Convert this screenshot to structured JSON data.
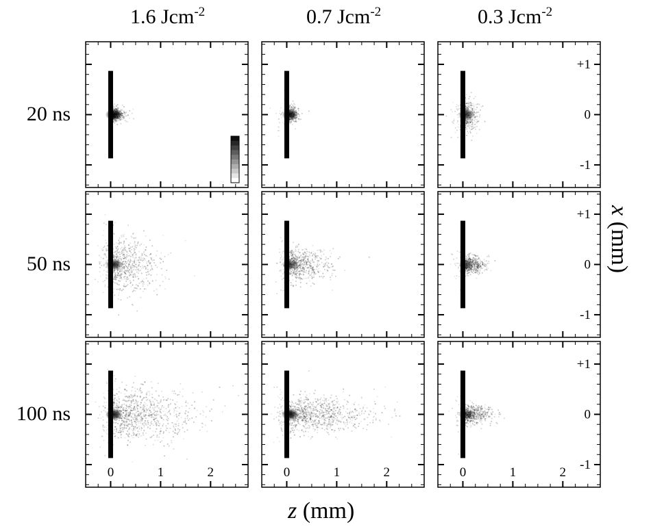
{
  "columns": [
    {
      "value": "1.6 Jcm",
      "exp": "-2"
    },
    {
      "value": "0.7 Jcm",
      "exp": "-2"
    },
    {
      "value": "0.3 Jcm",
      "exp": "-2"
    }
  ],
  "rows": [
    "20 ns",
    "50 ns",
    "100 ns"
  ],
  "x_axis": {
    "symbol": "z",
    "unit": " (mm)",
    "tick_labels": [
      "0",
      "1",
      "2"
    ]
  },
  "y_axis": {
    "symbol": "x",
    "unit": " (mm)",
    "tick_labels": [
      "+1",
      "0",
      "-1"
    ]
  },
  "plume_intensity": [
    [
      {
        "core": 0.95,
        "spread_z": 0.12,
        "spread_x": 0.07,
        "halo": 0.0
      },
      {
        "core": 0.8,
        "spread_z": 0.1,
        "spread_x": 0.08,
        "halo": 0.15
      },
      {
        "core": 0.7,
        "spread_z": 0.12,
        "spread_x": 0.15,
        "halo": 0.35
      }
    ],
    [
      {
        "core": 0.85,
        "spread_z": 0.4,
        "spread_x": 0.28,
        "halo": 0.55
      },
      {
        "core": 0.7,
        "spread_z": 0.35,
        "spread_x": 0.16,
        "halo": 0.35
      },
      {
        "core": 0.55,
        "spread_z": 0.2,
        "spread_x": 0.09,
        "halo": 0.2
      }
    ],
    [
      {
        "core": 0.9,
        "spread_z": 0.7,
        "spread_x": 0.25,
        "halo": 0.45
      },
      {
        "core": 0.95,
        "spread_z": 0.7,
        "spread_x": 0.18,
        "halo": 0.4
      },
      {
        "core": 0.6,
        "spread_z": 0.25,
        "spread_x": 0.09,
        "halo": 0.2
      }
    ]
  ],
  "colors": {
    "ink": "#000000",
    "plume": "#000000",
    "background": "#ffffff"
  }
}
